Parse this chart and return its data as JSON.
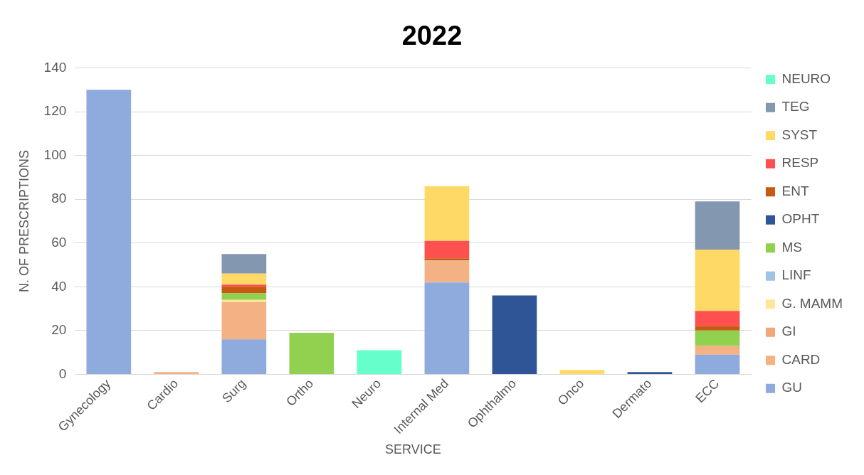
{
  "chart_data": {
    "type": "bar",
    "title": "2022",
    "xlabel": "SERVICE",
    "ylabel": "N. OF PRESCRIPTIONS",
    "stacked": true,
    "grid": "y",
    "legend": "right",
    "ylim": [
      0,
      140
    ],
    "yticks": [
      0,
      20,
      40,
      60,
      80,
      100,
      120,
      140
    ],
    "categories": [
      "Gynecology",
      "Cardio",
      "Surg",
      "Ortho",
      "Neuro",
      "Internal Med",
      "Ophthalmo",
      "Onco",
      "Dermato",
      "ECC"
    ],
    "series": [
      {
        "name": "GU",
        "color": "#8faadc",
        "values": [
          130,
          0,
          16,
          0,
          0,
          42,
          0,
          0,
          0,
          9
        ]
      },
      {
        "name": "CARD",
        "color": "#f4b183",
        "values": [
          0,
          1,
          17,
          0,
          0,
          10,
          0,
          0,
          0,
          4
        ]
      },
      {
        "name": "GI",
        "color": "#f0a878",
        "values": [
          0,
          0,
          0,
          0,
          0,
          0,
          0,
          0,
          0,
          0
        ]
      },
      {
        "name": "G. MAMM",
        "color": "#ffe699",
        "values": [
          0,
          0,
          1,
          0,
          0,
          0,
          0,
          0,
          0,
          0
        ]
      },
      {
        "name": "LINF",
        "color": "#9dc3e6",
        "values": [
          0,
          0,
          0,
          0,
          0,
          0,
          0,
          0,
          0,
          0
        ]
      },
      {
        "name": "MS",
        "color": "#92d050",
        "values": [
          0,
          0,
          3,
          19,
          0,
          0,
          0,
          0,
          0,
          7
        ]
      },
      {
        "name": "OPHT",
        "color": "#2f5597",
        "values": [
          0,
          0,
          0,
          0,
          0,
          0,
          36,
          0,
          1,
          0
        ]
      },
      {
        "name": "ENT",
        "color": "#c55a11",
        "values": [
          0,
          0,
          3,
          0,
          0,
          1,
          0,
          0,
          0,
          2
        ]
      },
      {
        "name": "RESP",
        "color": "#ff5050",
        "values": [
          0,
          0,
          1,
          0,
          0,
          8,
          0,
          0,
          0,
          7
        ]
      },
      {
        "name": "SYST",
        "color": "#ffd966",
        "values": [
          0,
          0,
          5,
          0,
          0,
          25,
          0,
          2,
          0,
          28
        ]
      },
      {
        "name": "TEG",
        "color": "#8497b0",
        "values": [
          0,
          0,
          9,
          0,
          0,
          0,
          0,
          0,
          0,
          22
        ]
      },
      {
        "name": "NEURO",
        "color": "#66ffcc",
        "values": [
          0,
          0,
          0,
          0,
          11,
          0,
          0,
          0,
          0,
          0
        ]
      }
    ]
  }
}
